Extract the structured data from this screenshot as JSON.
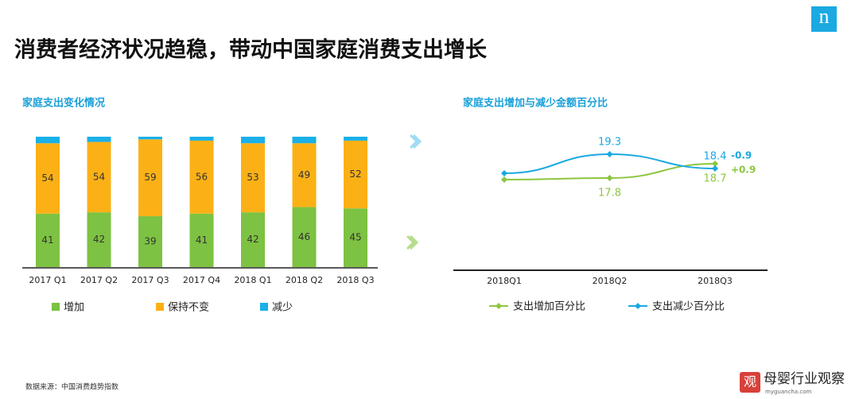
{
  "title": "消费者经济状况趋稳，带动中国家庭消费支出增长",
  "logo": "n",
  "source": "数据来源：中国消费趋势指数",
  "watermark": {
    "icon": "观",
    "name": "母婴行业观察",
    "site": "myguancha.com"
  },
  "chart_data": [
    {
      "type": "stacked-bar",
      "title": "家庭支出变化情况",
      "categories": [
        "2017 Q1",
        "2017 Q2",
        "2017 Q3",
        "2017 Q4",
        "2018 Q1",
        "2018 Q2",
        "2018 Q3"
      ],
      "ylim": [
        0,
        100
      ],
      "series": [
        {
          "name": "增加",
          "color": "#7dc242",
          "values": [
            41,
            42,
            39,
            41,
            42,
            46,
            45
          ],
          "data_labels": true
        },
        {
          "name": "保持不变",
          "color": "#fbb116",
          "values": [
            54,
            54,
            59,
            56,
            53,
            49,
            52
          ],
          "data_labels": true
        },
        {
          "name": "减少",
          "color": "#1ab0e8",
          "values": [
            5,
            4,
            2,
            3,
            5,
            5,
            3
          ],
          "data_labels": false
        }
      ]
    },
    {
      "type": "line",
      "title": "家庭支出增加与减少金额百分比",
      "categories": [
        "2018Q1",
        "2018Q2",
        "2018Q3"
      ],
      "ylim": [
        12,
        21
      ],
      "series": [
        {
          "name": "支出增加百分比",
          "color": "#8cc63f",
          "values": [
            17.7,
            17.8,
            18.7
          ],
          "value_labels": [
            null,
            "17.8",
            "18.7"
          ],
          "change_label": "+0.9"
        },
        {
          "name": "支出减少百分比",
          "color": "#1aa9e0",
          "values": [
            18.1,
            19.3,
            18.4
          ],
          "value_labels": [
            null,
            "19.3",
            "18.4"
          ],
          "change_label": "-0.9"
        }
      ]
    }
  ]
}
